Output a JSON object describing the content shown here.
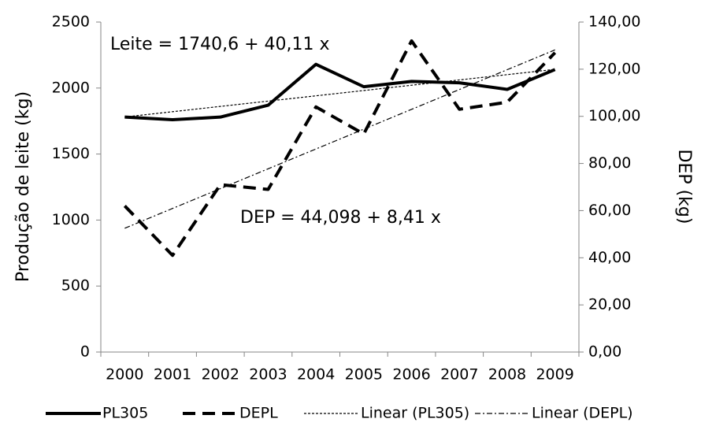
{
  "chart_data": {
    "type": "line",
    "categories": [
      "2000",
      "2001",
      "2002",
      "2003",
      "2004",
      "2005",
      "2006",
      "2007",
      "2008",
      "2009"
    ],
    "series": [
      {
        "name": "PL305",
        "color": "#000000",
        "line_style": "solid",
        "values": [
          1780,
          1760,
          1780,
          1870,
          2180,
          2010,
          2050,
          2040,
          1990,
          2140
        ]
      },
      {
        "name": "DEPL",
        "color": "#000000",
        "line_style": "dashed",
        "axis": "y2",
        "values": [
          62,
          41,
          71,
          69,
          104,
          92.5,
          132,
          103,
          106,
          127
        ]
      }
    ],
    "trendlines": [
      {
        "name": "Linear (PL305)",
        "line_style": "dotted",
        "intercept": 1740.6,
        "slope": 40.11
      },
      {
        "name": "Linear (DEPL)",
        "line_style": "dashdot",
        "axis": "y2",
        "intercept": 44.098,
        "slope": 8.41
      }
    ],
    "annotations": [
      "Leite =  1740,6 + 40,11 x",
      "DEP =  44,098 + 8,41 x"
    ],
    "ylabel": "Produção de leite (kg)",
    "y2label": "DEP (kg)",
    "ylim": [
      0,
      2500
    ],
    "yticks": [
      0,
      500,
      1000,
      1500,
      2000,
      2500
    ],
    "y2lim": [
      0,
      140
    ],
    "y2ticks": [
      {
        "value": 0,
        "label": "0,00"
      },
      {
        "value": 20,
        "label": "20,00"
      },
      {
        "value": 40,
        "label": "40,00"
      },
      {
        "value": 60,
        "label": "60,00"
      },
      {
        "value": 80,
        "label": "80,00"
      },
      {
        "value": 100,
        "label": "100,00"
      },
      {
        "value": 120,
        "label": "120,00"
      },
      {
        "value": 140,
        "label": "140,00"
      }
    ],
    "grid": false,
    "legend": "bottom"
  }
}
